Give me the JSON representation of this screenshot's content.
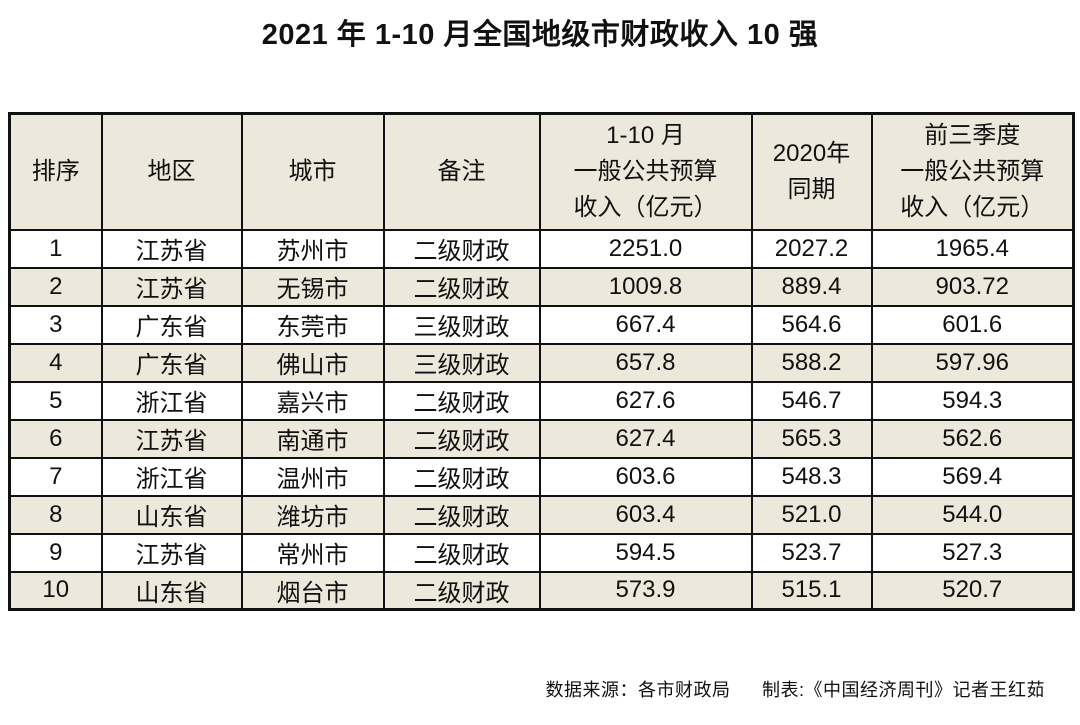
{
  "page_title": "2021 年 1-10 月全国地级市财政收入 10 强",
  "chart_data": {
    "type": "table",
    "title": "2021 年 1-10 月全国地级市财政收入 10 强",
    "columns": [
      {
        "key": "rank",
        "label": [
          "排序"
        ]
      },
      {
        "key": "region",
        "label": [
          "地区"
        ]
      },
      {
        "key": "city",
        "label": [
          "城市"
        ]
      },
      {
        "key": "note",
        "label": [
          "备注"
        ]
      },
      {
        "key": "rev_2021",
        "label": [
          "1-10 月",
          "一般公共预算",
          "收入（亿元）"
        ]
      },
      {
        "key": "rev_2020",
        "label": [
          "2020年",
          "同期"
        ]
      },
      {
        "key": "rev_q3",
        "label": [
          "前三季度",
          "一般公共预算",
          "收入（亿元）"
        ]
      }
    ],
    "rows": [
      [
        "1",
        "江苏省",
        "苏州市",
        "二级财政",
        "2251.0",
        "2027.2",
        "1965.4"
      ],
      [
        "2",
        "江苏省",
        "无锡市",
        "二级财政",
        "1009.8",
        "889.4",
        "903.72"
      ],
      [
        "3",
        "广东省",
        "东莞市",
        "三级财政",
        "667.4",
        "564.6",
        "601.6"
      ],
      [
        "4",
        "广东省",
        "佛山市",
        "三级财政",
        "657.8",
        "588.2",
        "597.96"
      ],
      [
        "5",
        "浙江省",
        "嘉兴市",
        "二级财政",
        "627.6",
        "546.7",
        "594.3"
      ],
      [
        "6",
        "江苏省",
        "南通市",
        "二级财政",
        "627.4",
        "565.3",
        "562.6"
      ],
      [
        "7",
        "浙江省",
        "温州市",
        "二级财政",
        "603.6",
        "548.3",
        "569.4"
      ],
      [
        "8",
        "山东省",
        "潍坊市",
        "二级财政",
        "603.4",
        "521.0",
        "544.0"
      ],
      [
        "9",
        "江苏省",
        "常州市",
        "二级财政",
        "594.5",
        "523.7",
        "527.3"
      ],
      [
        "10",
        "山东省",
        "烟台市",
        "二级财政",
        "573.9",
        "515.1",
        "520.7"
      ]
    ],
    "layout": "header row beige; data rows alternate white/beige starting white; all borders black; values centered"
  },
  "footer": {
    "source": "数据来源：各市财政局",
    "credit": "制表:《中国经济周刊》记者王红茹"
  },
  "colors": {
    "band": "#ece9dc",
    "border": "#111111",
    "background": "#ffffff",
    "text": "#111111"
  }
}
